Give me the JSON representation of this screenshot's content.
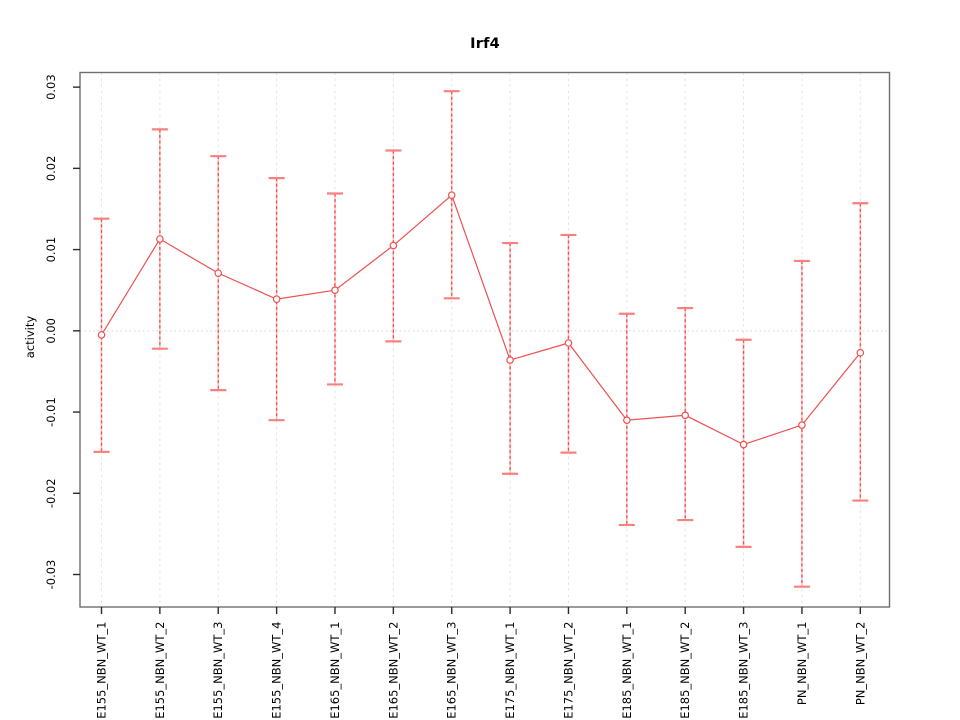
{
  "chart_data": {
    "type": "line",
    "subtype": "points-with-error-bars",
    "title": "Irf4",
    "ylabel": "activity",
    "xlabel": "",
    "legend": "none",
    "categories": [
      "E155_NBN_WT_1",
      "E155_NBN_WT_2",
      "E155_NBN_WT_3",
      "E155_NBN_WT_4",
      "E165_NBN_WT_1",
      "E165_NBN_WT_2",
      "E165_NBN_WT_3",
      "E175_NBN_WT_1",
      "E175_NBN_WT_2",
      "E185_NBN_WT_1",
      "E185_NBN_WT_2",
      "E185_NBN_WT_3",
      "PN_NBN_WT_1",
      "PN_NBN_WT_2"
    ],
    "values": [
      -0.0005,
      0.0113,
      0.0071,
      0.0039,
      0.005,
      0.0105,
      0.0167,
      -0.0036,
      -0.0015,
      -0.011,
      -0.0104,
      -0.014,
      -0.0116,
      -0.0027
    ],
    "error_upper": [
      0.0138,
      0.0248,
      0.0215,
      0.0188,
      0.0169,
      0.0222,
      0.0295,
      0.0108,
      0.0118,
      0.0021,
      0.0028,
      -0.0011,
      0.0086,
      0.0157
    ],
    "error_lower": [
      -0.0149,
      -0.0022,
      -0.0073,
      -0.011,
      -0.0066,
      -0.0013,
      0.004,
      -0.0176,
      -0.015,
      -0.0239,
      -0.0233,
      -0.0266,
      -0.0315,
      -0.0209
    ],
    "y_ticks": [
      0.03,
      0.02,
      0.01,
      0,
      -0.01,
      -0.02,
      -0.03
    ],
    "y_tick_labels": [
      "0.03",
      "0.02",
      "0.01",
      "0.00",
      "-0.01",
      "-0.02",
      "-0.03"
    ],
    "ylim": [
      -0.034,
      0.0318
    ],
    "grid": {
      "vertical_dashed_per_category": true,
      "horizontal_dotted_at_zero": true
    },
    "colors": {
      "series": "#ef4f4f",
      "cap": "#f8807f",
      "bar_pale": "#fcc3c3",
      "grid": "#e3e3e3",
      "zero_line": "#d6d6d6",
      "border": "#6e6e6e",
      "tick": "#2b2b2b",
      "text": "#000000"
    }
  }
}
